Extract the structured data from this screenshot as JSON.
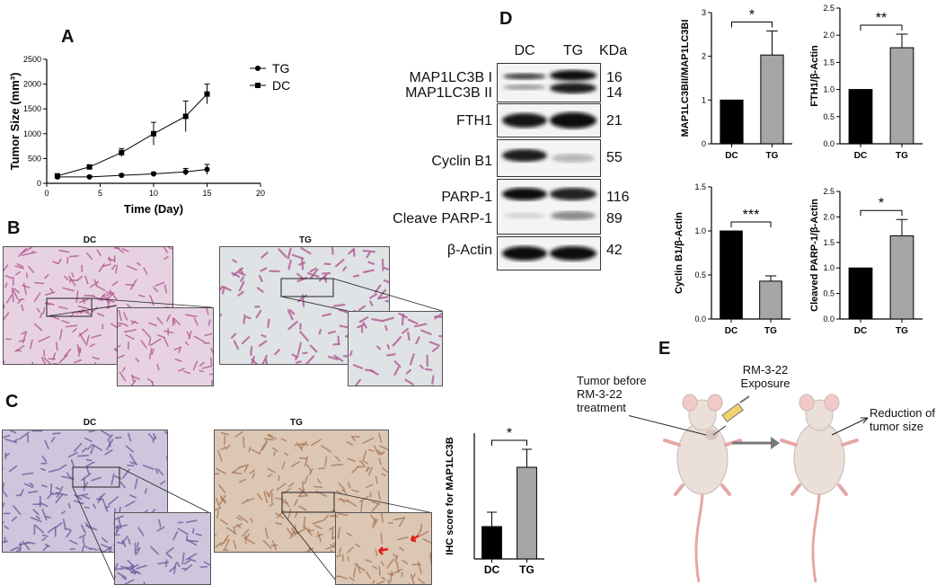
{
  "panels": {
    "A": "A",
    "B": "B",
    "C": "C",
    "D": "D",
    "E": "E"
  },
  "chart_data": [
    {
      "id": "A",
      "type": "line",
      "xlabel": "Time (Day)",
      "ylabel": "Tumor Size (mm³)",
      "xlim": [
        0,
        20
      ],
      "ylim": [
        0,
        2500
      ],
      "xticks": [
        0,
        5,
        10,
        15,
        20
      ],
      "yticks": [
        0,
        500,
        1000,
        1500,
        2000,
        2500
      ],
      "legend_position": "top-right",
      "series": [
        {
          "name": "TG",
          "marker": "circle",
          "x": [
            1,
            4,
            7,
            10,
            13,
            15
          ],
          "y": [
            130,
            130,
            160,
            190,
            230,
            280
          ],
          "err": [
            30,
            25,
            30,
            35,
            70,
            100
          ]
        },
        {
          "name": "DC",
          "marker": "square",
          "x": [
            1,
            4,
            7,
            10,
            13,
            15
          ],
          "y": [
            150,
            330,
            620,
            1000,
            1350,
            1800
          ],
          "err": [
            40,
            40,
            80,
            230,
            310,
            200
          ]
        }
      ]
    },
    {
      "id": "C-ihc",
      "type": "bar",
      "categories": [
        "DC",
        "TG"
      ],
      "values": [
        0.9,
        2.55
      ],
      "errors": [
        0.4,
        0.5
      ],
      "ylabel": "IHC score for MAP1LC3B",
      "ylim": [
        0,
        3.5
      ],
      "significance": "*",
      "colors": [
        "#000000",
        "#a6a6a6"
      ]
    },
    {
      "id": "D-lc3",
      "type": "bar",
      "categories": [
        "DC",
        "TG"
      ],
      "values": [
        1.0,
        2.03
      ],
      "errors": [
        0,
        0.55
      ],
      "ylabel": "MAP1LC3BII/MAP1LC3BI",
      "ylim": [
        0,
        3
      ],
      "yticks": [
        0,
        1,
        2,
        3
      ],
      "significance": "*",
      "colors": [
        "#000000",
        "#a6a6a6"
      ]
    },
    {
      "id": "D-fth1",
      "type": "bar",
      "categories": [
        "DC",
        "TG"
      ],
      "values": [
        1.0,
        1.77
      ],
      "errors": [
        0,
        0.25
      ],
      "ylabel": "FTH1/β-Actin",
      "ylim": [
        0,
        2.5
      ],
      "yticks": [
        0.0,
        0.5,
        1.0,
        1.5,
        2.0,
        2.5
      ],
      "significance": "**",
      "colors": [
        "#000000",
        "#a6a6a6"
      ]
    },
    {
      "id": "D-cyclin",
      "type": "bar",
      "categories": [
        "DC",
        "TG"
      ],
      "values": [
        1.0,
        0.43
      ],
      "errors": [
        0,
        0.06
      ],
      "ylabel": "Cyclin B1/β-Actin",
      "ylim": [
        0,
        1.5
      ],
      "yticks": [
        0.0,
        0.5,
        1.0,
        1.5
      ],
      "significance": "***",
      "colors": [
        "#000000",
        "#a6a6a6"
      ]
    },
    {
      "id": "D-parp",
      "type": "bar",
      "categories": [
        "DC",
        "TG"
      ],
      "values": [
        1.0,
        1.63
      ],
      "errors": [
        0,
        0.32
      ],
      "ylabel": "Cleaved PARP-1/β-Actin",
      "ylim": [
        0,
        2.5
      ],
      "yticks": [
        0.0,
        0.5,
        1.0,
        1.5,
        2.0,
        2.5
      ],
      "significance": "*",
      "colors": [
        "#000000",
        "#a6a6a6"
      ]
    }
  ],
  "histology": {
    "B_left_title": "DC",
    "B_right_title": "TG",
    "C_left_title": "DC",
    "C_right_title": "TG",
    "colors": {
      "he_bg": "#e7d2e2",
      "he_stain": "#b0528f",
      "ihc_bg_dc": "#cfc6dd",
      "ihc_stain_dc": "#6b5a9b",
      "ihc_bg_tg": "#dcc6b4",
      "ihc_stain_tg": "#a67353",
      "arrow": "#e0201a"
    }
  },
  "western": {
    "col_dc": "DC",
    "col_tg": "TG",
    "kda_header": "KDa",
    "rows": [
      {
        "label1": "MAP1LC3B I",
        "label2": "MAP1LC3B II",
        "kda1": "16",
        "kda2": "14"
      },
      {
        "label1": "FTH1",
        "kda1": "21"
      },
      {
        "label1": "Cyclin B1",
        "kda1": "55"
      },
      {
        "label1": "PARP-1",
        "label2": "Cleave PARP-1",
        "kda1": "116",
        "kda2": "89"
      },
      {
        "label1": "β-Actin",
        "kda1": "42"
      }
    ]
  },
  "schematic": {
    "tumor_label": "Tumor before\nRM-3-22\ntreatment",
    "exposure_label": "RM-3-22\nExposure",
    "result_label": "Reduction of\ntumor size"
  }
}
